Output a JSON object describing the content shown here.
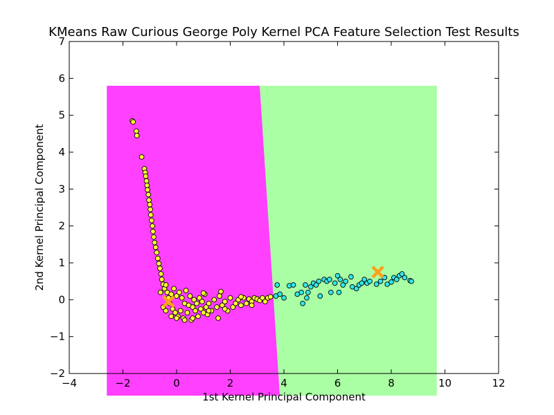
{
  "chart_data": {
    "type": "scatter",
    "title": "KMeans Raw Curious George Poly Kernel PCA Feature Selection Test Results",
    "xlabel": "1st Kernel Principal Component",
    "ylabel": "2nd Kernel Principal Component",
    "xlim": [
      -4,
      12
    ],
    "ylim": [
      -2,
      7
    ],
    "xticks": [
      -4,
      -2,
      0,
      2,
      4,
      6,
      8,
      10,
      12
    ],
    "yticks": [
      -2,
      -1,
      0,
      1,
      2,
      3,
      4,
      5,
      6,
      7
    ],
    "grid": false,
    "legend": "none",
    "colors": {
      "region_cluster_1": "#ff40ff",
      "region_cluster_2": "#aaffa4",
      "points_cluster_1": "#ffff33",
      "points_cluster_2": "#33e8e8",
      "centroid": "#ff9f1a",
      "point_edge": "#000000"
    },
    "decision_regions": {
      "x_range": [
        -2.6,
        9.7
      ],
      "y_range": [
        -2.6,
        5.8
      ],
      "boundary_top": [
        3.1,
        5.8
      ],
      "boundary_bottom": [
        3.85,
        -2.6
      ]
    },
    "centroids": [
      {
        "x": -0.3,
        "y": -0.05
      },
      {
        "x": 7.5,
        "y": 0.75
      }
    ],
    "series": [
      {
        "values": [
          [
            -1.65,
            4.85
          ],
          [
            -1.62,
            4.82
          ],
          [
            -1.5,
            4.57
          ],
          [
            -1.48,
            4.45
          ],
          [
            -1.3,
            3.87
          ],
          [
            -1.2,
            3.55
          ],
          [
            -1.17,
            3.45
          ],
          [
            -1.15,
            3.35
          ],
          [
            -1.12,
            3.22
          ],
          [
            -1.1,
            3.1
          ],
          [
            -1.08,
            2.98
          ],
          [
            -1.05,
            2.85
          ],
          [
            -1.03,
            2.7
          ],
          [
            -1.0,
            2.58
          ],
          [
            -0.98,
            2.45
          ],
          [
            -0.96,
            2.3
          ],
          [
            -0.93,
            2.15
          ],
          [
            -0.9,
            2.0
          ],
          [
            -0.88,
            1.85
          ],
          [
            -0.85,
            1.7
          ],
          [
            -0.82,
            1.55
          ],
          [
            -0.78,
            1.42
          ],
          [
            -0.74,
            1.28
          ],
          [
            -0.7,
            1.12
          ],
          [
            -0.66,
            0.98
          ],
          [
            -0.62,
            0.85
          ],
          [
            -0.58,
            0.7
          ],
          [
            -0.55,
            0.55
          ],
          [
            -0.5,
            0.42
          ],
          [
            -0.45,
            0.3
          ],
          [
            -0.4,
            0.4
          ],
          [
            -0.35,
            0.2
          ],
          [
            -0.3,
            0.05
          ],
          [
            -0.25,
            -0.1
          ],
          [
            -0.2,
            0.15
          ],
          [
            -0.15,
            -0.25
          ],
          [
            -0.1,
            0.3
          ],
          [
            -0.05,
            -0.35
          ],
          [
            0.0,
            0.1
          ],
          [
            0.05,
            -0.45
          ],
          [
            0.1,
            0.2
          ],
          [
            0.15,
            -0.3
          ],
          [
            0.2,
            0.05
          ],
          [
            0.25,
            -0.5
          ],
          [
            0.3,
            -0.1
          ],
          [
            0.35,
            0.25
          ],
          [
            0.4,
            -0.35
          ],
          [
            0.45,
            -0.15
          ],
          [
            0.5,
            0.1
          ],
          [
            0.55,
            -0.55
          ],
          [
            0.6,
            -0.2
          ],
          [
            0.65,
            0.0
          ],
          [
            0.7,
            -0.3
          ],
          [
            0.75,
            -0.1
          ],
          [
            0.8,
            -0.45
          ],
          [
            0.85,
            0.05
          ],
          [
            0.9,
            -0.25
          ],
          [
            0.95,
            -0.05
          ],
          [
            1.0,
            -0.35
          ],
          [
            1.05,
            0.15
          ],
          [
            1.1,
            -0.2
          ],
          [
            1.15,
            -0.4
          ],
          [
            1.2,
            -0.1
          ],
          [
            1.3,
            -0.3
          ],
          [
            1.4,
            0.0
          ],
          [
            1.5,
            -0.2
          ],
          [
            1.55,
            -0.5
          ],
          [
            1.6,
            0.1
          ],
          [
            1.65,
            0.22
          ],
          [
            1.7,
            -0.15
          ],
          [
            1.8,
            -0.05
          ],
          [
            1.9,
            -0.3
          ],
          [
            2.0,
            0.05
          ],
          [
            2.1,
            -0.2
          ],
          [
            2.2,
            -0.1
          ],
          [
            2.3,
            0.0
          ],
          [
            2.4,
            -0.15
          ],
          [
            2.5,
            0.05
          ],
          [
            2.6,
            -0.1
          ],
          [
            2.7,
            0.02
          ],
          [
            2.8,
            -0.05
          ],
          [
            2.9,
            0.05
          ],
          [
            3.0,
            0.02
          ],
          [
            3.1,
            -0.02
          ],
          [
            3.2,
            0.05
          ],
          [
            3.3,
            -0.05
          ],
          [
            3.4,
            0.05
          ],
          [
            3.5,
            0.08
          ],
          [
            -0.6,
            0.2
          ],
          [
            -0.5,
            -0.2
          ],
          [
            -0.4,
            -0.3
          ],
          [
            -0.2,
            -0.45
          ],
          [
            0.0,
            -0.5
          ],
          [
            0.3,
            -0.55
          ],
          [
            0.6,
            -0.5
          ],
          [
            1.0,
            0.18
          ],
          [
            1.2,
            -0.3
          ],
          [
            1.8,
            -0.25
          ],
          [
            2.4,
            0.08
          ],
          [
            2.8,
            -0.15
          ]
        ]
      },
      {
        "values": [
          [
            3.7,
            0.1
          ],
          [
            3.75,
            0.4
          ],
          [
            3.85,
            0.15
          ],
          [
            4.0,
            0.05
          ],
          [
            4.2,
            0.38
          ],
          [
            4.35,
            0.4
          ],
          [
            4.5,
            0.15
          ],
          [
            4.65,
            0.2
          ],
          [
            4.7,
            -0.1
          ],
          [
            4.8,
            0.4
          ],
          [
            4.85,
            0.05
          ],
          [
            4.9,
            0.2
          ],
          [
            5.0,
            0.35
          ],
          [
            5.1,
            0.45
          ],
          [
            5.2,
            0.4
          ],
          [
            5.3,
            0.5
          ],
          [
            5.35,
            0.1
          ],
          [
            5.5,
            0.55
          ],
          [
            5.6,
            0.5
          ],
          [
            5.7,
            0.55
          ],
          [
            5.75,
            0.2
          ],
          [
            5.9,
            0.45
          ],
          [
            6.0,
            0.65
          ],
          [
            6.05,
            0.2
          ],
          [
            6.1,
            0.55
          ],
          [
            6.2,
            0.4
          ],
          [
            6.3,
            0.5
          ],
          [
            6.5,
            0.62
          ],
          [
            6.55,
            0.35
          ],
          [
            6.7,
            0.3
          ],
          [
            6.8,
            0.4
          ],
          [
            6.9,
            0.45
          ],
          [
            7.0,
            0.55
          ],
          [
            7.1,
            0.45
          ],
          [
            7.2,
            0.5
          ],
          [
            7.45,
            0.42
          ],
          [
            7.6,
            0.5
          ],
          [
            7.75,
            0.6
          ],
          [
            7.85,
            0.42
          ],
          [
            8.0,
            0.48
          ],
          [
            8.1,
            0.6
          ],
          [
            8.2,
            0.55
          ],
          [
            8.3,
            0.65
          ],
          [
            8.4,
            0.7
          ],
          [
            8.5,
            0.6
          ],
          [
            8.7,
            0.52
          ],
          [
            8.75,
            0.5
          ]
        ]
      }
    ]
  }
}
